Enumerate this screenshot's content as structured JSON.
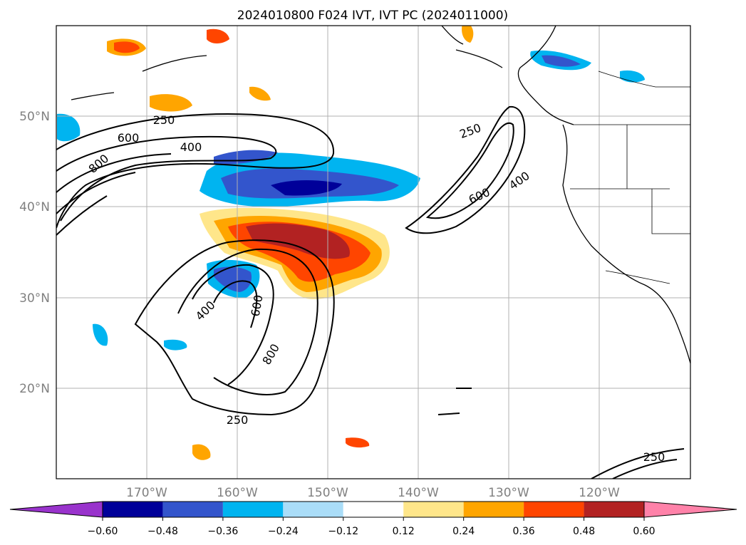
{
  "title": "2024010800 F024 IVT, IVT PC (2024011000)",
  "lon_labels": [
    "170°W",
    "160°W",
    "150°W",
    "140°W",
    "130°W",
    "120°W"
  ],
  "lat_labels": [
    "50°N",
    "40°N",
    "30°N",
    "20°N"
  ],
  "contour_labels": [
    {
      "text": "250"
    },
    {
      "text": "600"
    },
    {
      "text": "400"
    },
    {
      "text": "800"
    },
    {
      "text": "250"
    },
    {
      "text": "600"
    },
    {
      "text": "400"
    },
    {
      "text": "400"
    },
    {
      "text": "600"
    },
    {
      "text": "800"
    },
    {
      "text": "250"
    },
    {
      "text": "250"
    }
  ],
  "colorbar": {
    "colors": [
      "#9933cc",
      "#000099",
      "#3355cc",
      "#00b4f0",
      "#aaddf8",
      "#ffffff",
      "#ffe68a",
      "#ffa500",
      "#ff4500",
      "#b22222",
      "#ff82a9"
    ],
    "tick_labels": [
      "−0.60",
      "−0.48",
      "−0.36",
      "−0.24",
      "−0.12",
      "0.12",
      "0.24",
      "0.36",
      "0.48",
      "0.60"
    ]
  },
  "colors": {
    "coast": "#000000",
    "grid": "#b0b0b0"
  }
}
